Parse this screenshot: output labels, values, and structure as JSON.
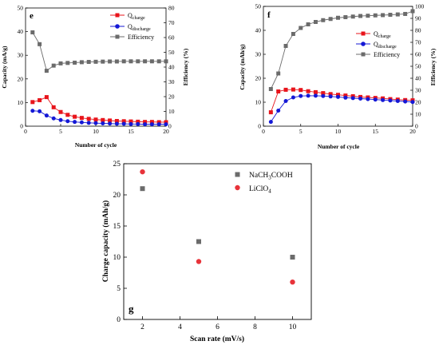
{
  "colors": {
    "charge": "#e8141b",
    "discharge": "#1418d6",
    "efficiency": "#6b6b6b",
    "nach3cooh": "#6b6b6b",
    "liclo4": "#e8333a"
  },
  "chart_data": [
    {
      "panel": "e",
      "type": "line",
      "xlabel": "Number of cycle",
      "ylabel_left": "Capacity (mA/g)",
      "ylabel_right": "Efficiency (%)",
      "xlim": [
        0,
        20
      ],
      "ylim_left": [
        0,
        50
      ],
      "ylim_right": [
        0,
        80
      ],
      "x_ticks": [
        "0",
        "5",
        "10",
        "15",
        "20"
      ],
      "y_left_ticks": [
        "0",
        "10",
        "20",
        "30",
        "40",
        "50"
      ],
      "y_right_ticks": [
        "0",
        "10",
        "20",
        "30",
        "40",
        "50",
        "60",
        "70",
        "80"
      ],
      "x": [
        1,
        2,
        3,
        4,
        5,
        6,
        7,
        8,
        9,
        10,
        11,
        12,
        13,
        14,
        15,
        16,
        17,
        18,
        19,
        20
      ],
      "series": [
        {
          "name": "Qcharge",
          "name_base": "Q",
          "name_sub": "charge",
          "axis": "left",
          "color_key": "charge",
          "marker": "square",
          "values": [
            10.2,
            11.0,
            12.3,
            8.0,
            6.0,
            4.8,
            4.0,
            3.5,
            3.1,
            2.8,
            2.6,
            2.4,
            2.2,
            2.1,
            2.0,
            1.9,
            1.8,
            1.8,
            1.7,
            1.7
          ]
        },
        {
          "name": "Qdischarge",
          "name_base": "Q",
          "name_sub": "discharge",
          "axis": "left",
          "color_key": "discharge",
          "marker": "circle",
          "values": [
            6.5,
            6.3,
            4.5,
            3.3,
            2.6,
            2.1,
            1.8,
            1.6,
            1.4,
            1.3,
            1.2,
            1.1,
            1.0,
            1.0,
            0.9,
            0.9,
            0.8,
            0.8,
            0.8,
            0.8
          ]
        },
        {
          "name": "Efficiency",
          "name_base": "Efficiency",
          "name_sub": "",
          "axis": "right",
          "color_key": "efficiency",
          "marker": "square",
          "values": [
            63.5,
            55.5,
            37.5,
            41.0,
            42.5,
            42.8,
            43.0,
            43.3,
            43.5,
            43.6,
            43.7,
            43.8,
            43.8,
            43.9,
            43.9,
            43.9,
            43.9,
            43.9,
            43.9,
            43.9
          ]
        }
      ]
    },
    {
      "panel": "f",
      "type": "line",
      "xlabel": "Number of cycle",
      "ylabel_left": "Capacity (mAh/g)",
      "ylabel_right": "Efficiency (%)",
      "xlim": [
        0,
        20
      ],
      "ylim_left": [
        0,
        50
      ],
      "ylim_right": [
        0,
        100
      ],
      "x_ticks": [
        "0",
        "5",
        "10",
        "15",
        "20"
      ],
      "y_left_ticks": [
        "0",
        "10",
        "20",
        "30",
        "40",
        "50"
      ],
      "y_right_ticks": [
        "0",
        "10",
        "20",
        "30",
        "40",
        "50",
        "60",
        "70",
        "80",
        "90",
        "100"
      ],
      "x": [
        1,
        2,
        3,
        4,
        5,
        6,
        7,
        8,
        9,
        10,
        11,
        12,
        13,
        14,
        15,
        16,
        17,
        18,
        19,
        20
      ],
      "series": [
        {
          "name": "Qcharge",
          "name_base": "Q",
          "name_sub": "charge",
          "axis": "left",
          "color_key": "charge",
          "marker": "square",
          "values": [
            5.8,
            14.5,
            15.2,
            15.3,
            15.1,
            14.6,
            14.2,
            13.8,
            13.4,
            13.1,
            12.8,
            12.5,
            12.2,
            12.0,
            11.8,
            11.6,
            11.3,
            11.1,
            10.9,
            10.8
          ]
        },
        {
          "name": "Qdischarge",
          "name_base": "Q",
          "name_sub": "discharge",
          "axis": "left",
          "color_key": "discharge",
          "marker": "circle",
          "values": [
            1.8,
            6.5,
            10.5,
            12.0,
            12.6,
            12.7,
            12.7,
            12.6,
            12.4,
            12.2,
            11.9,
            11.7,
            11.5,
            11.3,
            11.1,
            10.9,
            10.7,
            10.5,
            10.3,
            10.1
          ]
        },
        {
          "name": "Efficiency",
          "name_base": "Efficiency",
          "name_sub": "",
          "axis": "right",
          "color_key": "efficiency",
          "marker": "square",
          "values": [
            31,
            44,
            67,
            77,
            82,
            85,
            87,
            88.5,
            89.5,
            90.5,
            91,
            91.5,
            92,
            92.2,
            92.5,
            92.7,
            93,
            93.3,
            93.7,
            96
          ]
        }
      ]
    },
    {
      "panel": "g",
      "type": "scatter",
      "xlabel": "Scan rate (mV/s)",
      "ylabel": "Charge capacity (mAh/g)",
      "xlim": [
        1,
        11
      ],
      "ylim": [
        0,
        25
      ],
      "x_ticks": [
        "2",
        "4",
        "6",
        "8",
        "10"
      ],
      "y_ticks": [
        "0",
        "5",
        "10",
        "15",
        "20",
        "25"
      ],
      "series": [
        {
          "name": "NaCH3COOH",
          "name_parts": [
            [
              "NaCH",
              ""
            ],
            [
              "3",
              "sub"
            ],
            [
              "COOH",
              ""
            ]
          ],
          "color_key": "nach3cooh",
          "marker": "square",
          "x": [
            2,
            5,
            10
          ],
          "values": [
            21.0,
            12.5,
            10.0
          ]
        },
        {
          "name": "LiClO4",
          "name_parts": [
            [
              "LiClO",
              ""
            ],
            [
              "4",
              "sub"
            ]
          ],
          "color_key": "liclo4",
          "marker": "circle",
          "x": [
            2,
            5,
            10
          ],
          "values": [
            23.7,
            9.3,
            6.0
          ]
        }
      ]
    }
  ]
}
